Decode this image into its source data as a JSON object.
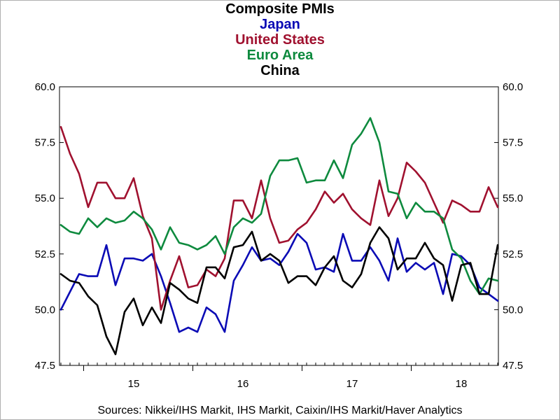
{
  "colors": {
    "japan": "#0b0bb5",
    "united_states": "#a0112f",
    "euro_area": "#0e8a3e",
    "china": "#000000"
  },
  "chart_data": {
    "type": "line",
    "titles": [
      "Composite PMIs",
      "Japan",
      "United States",
      "Euro Area",
      "China"
    ],
    "title": "Composite PMIs",
    "ylim": [
      47.5,
      60.0
    ],
    "y_ticks": [
      "47.5",
      "50.0",
      "52.5",
      "55.0",
      "57.5",
      "60.0"
    ],
    "y_tick_values": [
      47.5,
      50.0,
      52.5,
      55.0,
      57.5,
      60.0
    ],
    "x_ticks": [
      "15",
      "16",
      "17",
      "18"
    ],
    "x_start": "2014-10",
    "grid": false,
    "legend": "title",
    "series": [
      {
        "name": "Japan",
        "color_key": "japan",
        "values": [
          50.0,
          50.8,
          51.6,
          51.5,
          51.5,
          52.9,
          51.1,
          52.3,
          52.3,
          52.2,
          52.5,
          51.5,
          50.3,
          49.0,
          49.2,
          49.0,
          50.1,
          49.8,
          49.0,
          51.3,
          52.0,
          52.8,
          52.2,
          52.3,
          52.0,
          52.6,
          53.4,
          53.0,
          51.8,
          51.9,
          51.7,
          53.4,
          52.2,
          52.2,
          52.8,
          52.2,
          51.3,
          53.2,
          51.7,
          52.1,
          51.8,
          52.1,
          50.7,
          52.5,
          52.4,
          52.0,
          51.0,
          50.7,
          50.4
        ]
      },
      {
        "name": "United States",
        "color_key": "united_states",
        "values": [
          58.2,
          57.0,
          56.1,
          54.6,
          55.7,
          55.7,
          55.0,
          55.0,
          55.9,
          54.2,
          53.2,
          50.0,
          51.3,
          52.4,
          51.0,
          51.1,
          51.8,
          51.5,
          52.3,
          54.9,
          54.9,
          54.1,
          55.8,
          54.1,
          53.0,
          53.1,
          53.6,
          53.9,
          54.5,
          55.3,
          54.8,
          55.2,
          54.5,
          54.1,
          53.8,
          55.8,
          54.2,
          55.0,
          56.6,
          56.2,
          55.7,
          54.8,
          53.9,
          54.9,
          54.7,
          54.4,
          54.4,
          55.5,
          54.6
        ]
      },
      {
        "name": "Euro Area",
        "color_key": "euro_area",
        "values": [
          53.8,
          53.5,
          53.4,
          54.1,
          53.7,
          54.1,
          53.9,
          54.0,
          54.4,
          54.1,
          53.6,
          52.7,
          53.7,
          53.0,
          52.9,
          52.7,
          52.9,
          53.3,
          52.5,
          53.7,
          54.1,
          53.9,
          54.3,
          56.0,
          56.7,
          56.7,
          56.8,
          55.7,
          55.8,
          55.8,
          56.7,
          55.9,
          57.4,
          57.9,
          58.6,
          57.5,
          55.3,
          55.2,
          54.1,
          54.8,
          54.4,
          54.4,
          54.1,
          52.7,
          52.3,
          51.3,
          50.7,
          51.4,
          51.3
        ]
      },
      {
        "name": "China",
        "color_key": "china",
        "values": [
          51.6,
          51.3,
          51.2,
          50.6,
          50.2,
          48.8,
          48.0,
          49.9,
          50.5,
          49.3,
          50.1,
          49.4,
          51.2,
          50.9,
          50.5,
          50.3,
          51.9,
          51.9,
          51.4,
          52.8,
          52.9,
          53.5,
          52.2,
          52.5,
          52.2,
          51.2,
          51.5,
          51.5,
          51.1,
          51.9,
          52.4,
          51.3,
          51.0,
          51.6,
          53.0,
          53.7,
          53.2,
          51.8,
          52.3,
          52.3,
          53.0,
          52.3,
          52.0,
          50.4,
          52.0,
          52.1,
          50.7,
          50.7,
          52.9
        ]
      }
    ]
  },
  "sources": "Sources:  Nikkei/IHS Markit, IHS Markit, Caixin/IHS Markit/Haver Analytics"
}
